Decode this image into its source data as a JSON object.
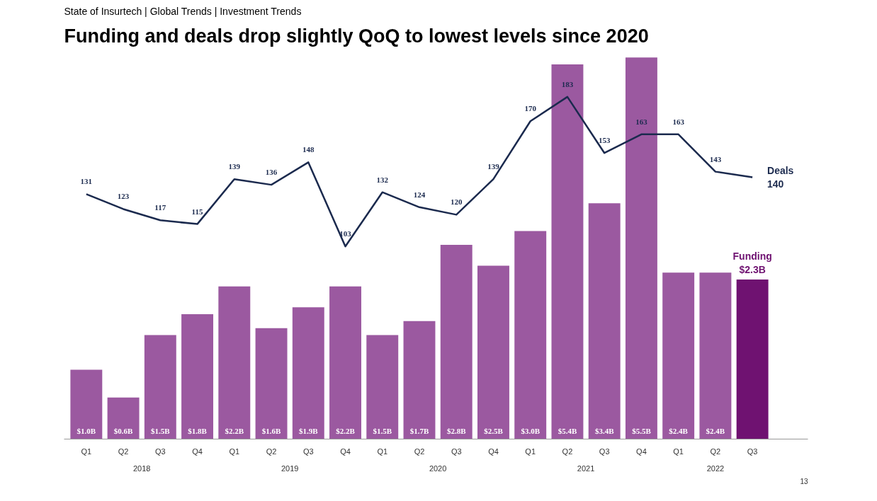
{
  "chart_data": {
    "type": "bar",
    "subtitle": "State of Insurtech | Global Trends | Investment Trends",
    "title": "Funding and deals drop slightly QoQ to lowest levels since 2020",
    "categories": [
      "Q1",
      "Q2",
      "Q3",
      "Q4",
      "Q1",
      "Q2",
      "Q3",
      "Q4",
      "Q1",
      "Q2",
      "Q3",
      "Q4",
      "Q1",
      "Q2",
      "Q3",
      "Q4",
      "Q1",
      "Q2",
      "Q3"
    ],
    "series": [
      {
        "colors": [
          "#9b59a0",
          "#9b59a0",
          "#9b59a0",
          "#9b59a0",
          "#9b59a0",
          "#9b59a0",
          "#9b59a0",
          "#9b59a0",
          "#9b59a0",
          "#9b59a0",
          "#9b59a0",
          "#9b59a0",
          "#9b59a0",
          "#9b59a0",
          "#9b59a0",
          "#9b59a0",
          "#9b59a0",
          "#9b59a0",
          "#6f1271"
        ],
        "values": [
          1.0,
          0.6,
          1.5,
          1.8,
          2.2,
          1.6,
          1.9,
          2.2,
          1.5,
          1.7,
          2.8,
          2.5,
          3.0,
          5.4,
          3.4,
          5.5,
          2.4,
          2.4,
          2.3
        ],
        "value_labels": [
          "$1.0B",
          "$0.6B",
          "$1.5B",
          "$1.8B",
          "$2.2B",
          "$1.6B",
          "$1.9B",
          "$2.2B",
          "$1.5B",
          "$1.7B",
          "$2.8B",
          "$2.5B",
          "$3.0B",
          "$5.4B",
          "$3.4B",
          "$5.5B",
          "$2.4B",
          "$2.4B",
          null
        ]
      },
      {
        "type": "line",
        "axis": "y2",
        "color": "#1b2a4e",
        "values": [
          131,
          123,
          117,
          115,
          139,
          136,
          148,
          103,
          132,
          124,
          120,
          139,
          170,
          183,
          153,
          163,
          163,
          143,
          140
        ],
        "value_labels": [
          "131",
          "123",
          "117",
          "115",
          "139",
          "136",
          "148",
          "103",
          "132",
          "124",
          "120",
          "139",
          "170",
          "183",
          "153",
          "163",
          "163",
          "143",
          null
        ]
      }
    ],
    "data_labels": true,
    "tick_labels": "x",
    "grid": false,
    "marker": "none",
    "annotations": [
      "2018",
      "2019",
      "2020",
      "2021",
      "2022",
      "13",
      "Funding\n$2.3B",
      "Deals\n140"
    ]
  }
}
